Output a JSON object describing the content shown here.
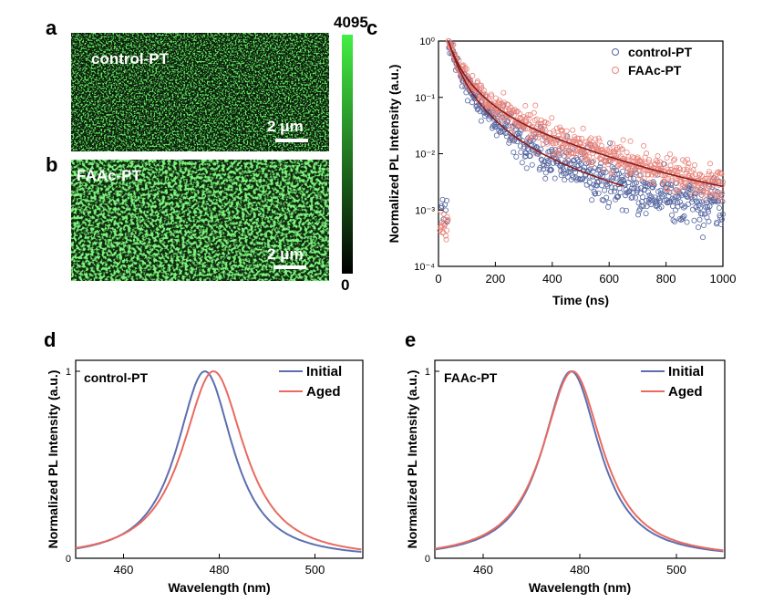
{
  "panels": {
    "a": "a",
    "b": "b",
    "c": "c",
    "d": "d",
    "e": "e"
  },
  "images": {
    "a": {
      "label": "control-PT",
      "scalebar": "2 μm"
    },
    "b": {
      "label": "FAAc-PT",
      "scalebar": "2 μm"
    },
    "colorbar": {
      "max": "4095",
      "min": "0"
    }
  },
  "colors": {
    "control": "#5566a0",
    "faac": "#e8837a",
    "fit": "#8b1a1a",
    "initial": "#5c6fb0",
    "aged": "#e96a60",
    "image_green": "#3cd83c"
  },
  "chart_data": [
    {
      "type": "scatter",
      "panel": "c",
      "xlabel": "Time (ns)",
      "ylabel": "Normalized PL Intensity (a.u.)",
      "xlim": [
        0,
        1000
      ],
      "ylim": [
        0.0001,
        1
      ],
      "yscale": "log",
      "xticks": [
        "0",
        "200",
        "400",
        "600",
        "800",
        "1000"
      ],
      "yticks": [
        "10⁻⁴",
        "10⁻³",
        "10⁻²",
        "10⁻¹",
        "10⁰"
      ],
      "legend": "top-right",
      "series": [
        {
          "name": "control-PT",
          "x": [
            35,
            60,
            100,
            150,
            200,
            250,
            300,
            400,
            500,
            600,
            800,
            1000
          ],
          "y": [
            1.0,
            0.15,
            0.04,
            0.012,
            0.005,
            0.0025,
            0.0016,
            0.001,
            0.0008,
            0.0007,
            0.0006,
            0.0006
          ]
        },
        {
          "name": "FAAc-PT",
          "x": [
            35,
            60,
            100,
            150,
            200,
            250,
            300,
            400,
            500,
            600,
            800,
            1000
          ],
          "y": [
            1.0,
            0.2,
            0.07,
            0.03,
            0.018,
            0.011,
            0.008,
            0.0045,
            0.003,
            0.0023,
            0.0017,
            0.0014
          ]
        }
      ]
    },
    {
      "type": "line",
      "panel": "d",
      "annotation": "control-PT",
      "xlabel": "Wavelength (nm)",
      "ylabel": "Normalized PL Intensity (a.u.)",
      "xlim": [
        450,
        510
      ],
      "ylim": [
        0,
        1
      ],
      "xticks": [
        460,
        480,
        500
      ],
      "yticks": [
        "0",
        "1"
      ],
      "legend": "top-right",
      "series": [
        {
          "name": "Initial",
          "peak": 477,
          "fwhm": 15.5
        },
        {
          "name": "Aged",
          "peak": 478.8,
          "fwhm": 17
        }
      ]
    },
    {
      "type": "line",
      "panel": "e",
      "annotation": "FAAc-PT",
      "xlabel": "Wavelength (nm)",
      "ylabel": "Normalized PL Intensity (a.u.)",
      "xlim": [
        450,
        510
      ],
      "ylim": [
        0,
        1
      ],
      "xticks": [
        460,
        480,
        500
      ],
      "yticks": [
        "0",
        "1"
      ],
      "legend": "top-right",
      "series": [
        {
          "name": "Initial",
          "peak": 478.2,
          "fwhm": 15.5
        },
        {
          "name": "Aged",
          "peak": 478.5,
          "fwhm": 16.3
        }
      ]
    }
  ]
}
